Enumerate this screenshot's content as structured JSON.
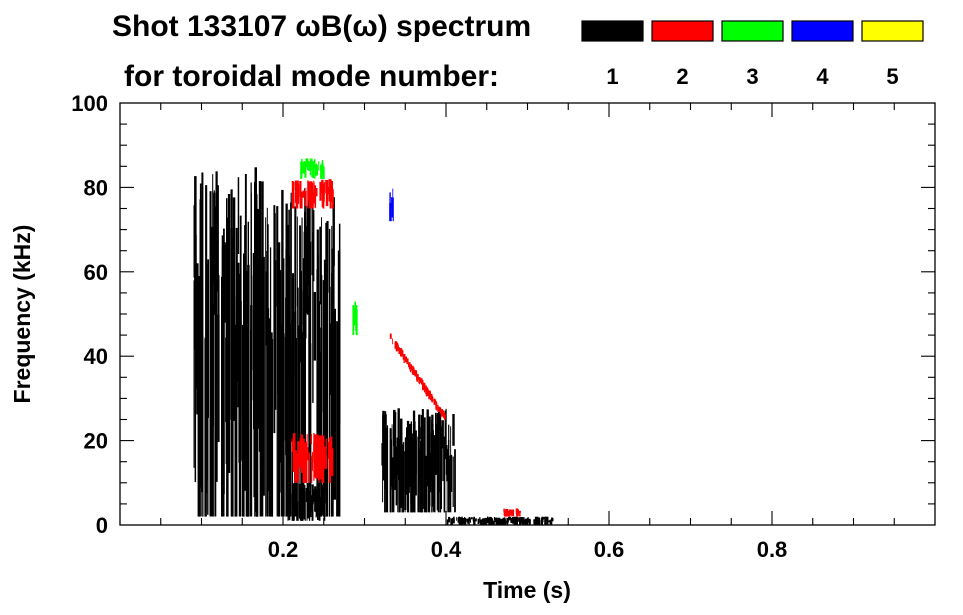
{
  "chart_data": {
    "type": "heatmap",
    "title": "Shot 133107 ωB(ω) spectrum",
    "subtitle": "for toroidal mode number:",
    "xlabel": "Time (s)",
    "ylabel": "Frequency (kHz)",
    "xlim": [
      0.0,
      1.0
    ],
    "ylim": [
      0,
      100
    ],
    "x_ticks": [
      0.2,
      0.4,
      0.6,
      0.8
    ],
    "x_tick_labels": [
      "0.2",
      "0.4",
      "0.6",
      "0.8"
    ],
    "y_ticks": [
      0,
      20,
      40,
      60,
      80,
      100
    ],
    "y_tick_labels": [
      "0",
      "20",
      "40",
      "60",
      "80",
      "100"
    ],
    "grid": false,
    "legend_position": "top-right",
    "legend": [
      {
        "label": "1",
        "color": "#000000"
      },
      {
        "label": "2",
        "color": "#ff0000"
      },
      {
        "label": "3",
        "color": "#00ff00"
      },
      {
        "label": "4",
        "color": "#0000ff"
      },
      {
        "label": "5",
        "color": "#ffff00"
      }
    ],
    "features": [
      {
        "mode": "1",
        "t_start": 0.09,
        "t_end": 0.19,
        "f_low": 2,
        "f_high": 85,
        "note": "broadband burst"
      },
      {
        "mode": "1",
        "t_start": 0.19,
        "t_end": 0.27,
        "f_low": 2,
        "f_high": 80,
        "note": "vertical streaks"
      },
      {
        "mode": "1",
        "t_start": 0.205,
        "t_end": 0.25,
        "f_low": 1,
        "f_high": 10
      },
      {
        "mode": "1",
        "t_start": 0.32,
        "t_end": 0.41,
        "f_low": 3,
        "f_high": 28
      },
      {
        "mode": "1",
        "t_start": 0.4,
        "t_end": 0.53,
        "f_low": 0,
        "f_high": 2
      },
      {
        "mode": "2",
        "t_start": 0.21,
        "t_end": 0.26,
        "f_low": 75,
        "f_high": 82
      },
      {
        "mode": "2",
        "t_start": 0.21,
        "t_end": 0.26,
        "f_low": 10,
        "f_high": 22
      },
      {
        "mode": "2",
        "t_start": 0.33,
        "t_end": 0.4,
        "f_low": 25,
        "f_high": 45,
        "note": "downward chirp"
      },
      {
        "mode": "2",
        "t_start": 0.47,
        "t_end": 0.49,
        "f_low": 2,
        "f_high": 4
      },
      {
        "mode": "3",
        "t_start": 0.22,
        "t_end": 0.25,
        "f_low": 82,
        "f_high": 87
      },
      {
        "mode": "3",
        "t_start": 0.285,
        "t_end": 0.29,
        "f_low": 45,
        "f_high": 53
      },
      {
        "mode": "4",
        "t_start": 0.33,
        "t_end": 0.335,
        "f_low": 72,
        "f_high": 80
      }
    ]
  }
}
